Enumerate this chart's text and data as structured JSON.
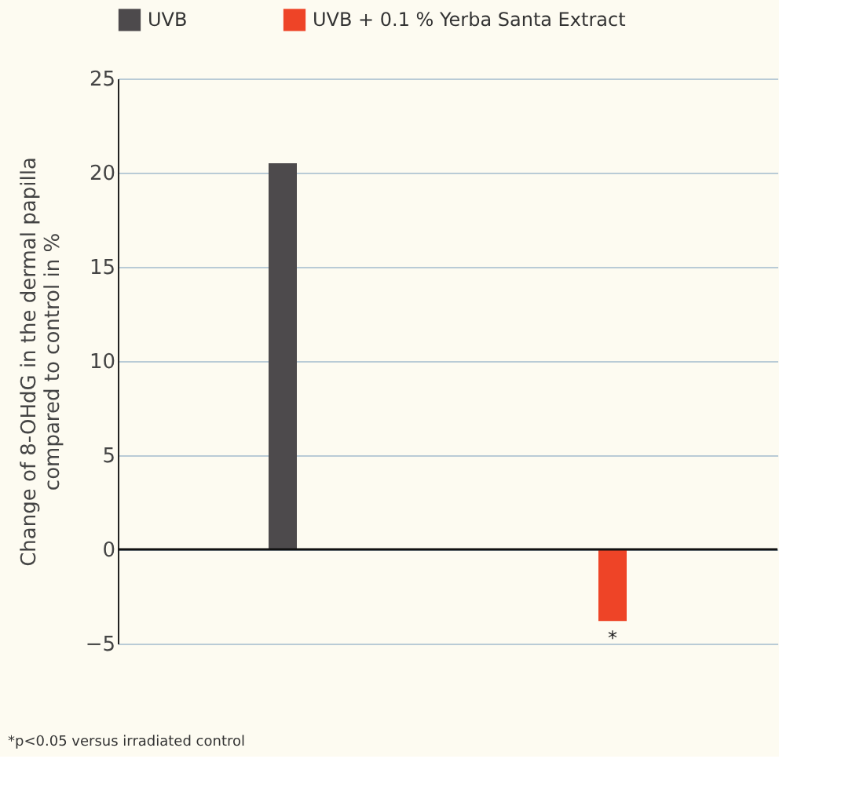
{
  "chart_data": {
    "type": "bar",
    "categories": [
      null,
      null
    ],
    "series": [
      {
        "name": "UVB",
        "color": "#4d4a4c",
        "values": [
          20.5,
          null
        ]
      },
      {
        "name": "UVB + 0.1 % Yerba Santa Extract",
        "color": "#ee4427",
        "values": [
          null,
          -3.8
        ]
      }
    ],
    "ylabel": "Change of 8-OHdG in the dermal papilla\ncompared to control in %",
    "ylim": [
      -5,
      25
    ],
    "yticks": [
      -5,
      0,
      5,
      10,
      15,
      20,
      25
    ],
    "grid": "y",
    "legend": "top left",
    "tick_labels": "y",
    "annotations": [
      {
        "text": "*",
        "y": -3.8
      },
      "*p<0.05 versus irradiated control"
    ]
  }
}
